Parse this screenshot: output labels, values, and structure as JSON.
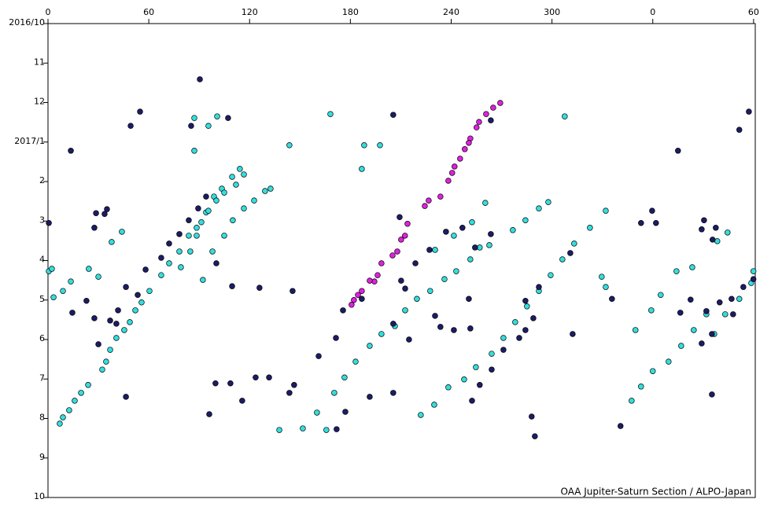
{
  "chart_data": {
    "type": "scatter",
    "annotation": "OAA Jupiter-Saturn Section / ALPO-Japan",
    "xlim": [
      0,
      421
    ],
    "xticks": [
      0,
      60,
      120,
      180,
      240,
      300,
      {
        "value": 360,
        "label": "0"
      },
      {
        "value": 420,
        "label": "60"
      }
    ],
    "ylim": [
      0,
      12
    ],
    "yticks": [
      {
        "value": 0,
        "label": "2016/10"
      },
      {
        "value": 1,
        "label": "11"
      },
      {
        "value": 2,
        "label": "12"
      },
      {
        "value": 3,
        "label": "2017/1"
      },
      {
        "value": 4,
        "label": "2"
      },
      {
        "value": 5,
        "label": "3"
      },
      {
        "value": 6,
        "label": "4"
      },
      {
        "value": 7,
        "label": "5"
      },
      {
        "value": 8,
        "label": "6"
      },
      {
        "value": 9,
        "label": "7"
      },
      {
        "value": 10,
        "label": "8"
      },
      {
        "value": 11,
        "label": "9"
      },
      {
        "value": 12,
        "label": "10"
      }
    ],
    "y_inverted": true,
    "series": [
      {
        "color": "#33dede",
        "x": [
          7.0,
          8.9,
          12.6,
          15.9,
          19.7,
          23.9,
          32.3,
          34.6,
          37.0,
          40.7,
          45.4,
          48.7,
          52.0,
          55.7,
          60.4,
          67.4,
          72.1,
          78.2,
          83.8,
          88.5,
          94.1,
          98.8,
          103.5,
          109.6,
          114.2,
          79.1,
          84.7,
          88.5,
          91.3,
          95.5,
          100.2,
          104.9,
          111.9,
          116.6,
          92.2,
          97.9,
          104.9,
          110.0,
          116.6,
          122.7,
          129.2,
          132.5,
          0.5,
          2.3,
          8.9,
          13.6,
          24.3,
          30.0,
          37.9,
          44.0,
          3.3,
          87.1,
          95.5,
          100.7,
          87.1,
          143.7,
          168.1,
          188.2,
          197.6,
          186.8,
          307.6,
          170.4,
          176.5,
          183.1,
          191.5,
          198.5,
          206.5,
          212.6,
          219.6,
          227.5,
          236.0,
          243.0,
          251.4,
          257.0,
          221.9,
          229.9,
          238.3,
          247.7,
          254.7,
          264.1,
          271.1,
          278.1,
          285.1,
          292.2,
          299.2,
          306.2,
          313.2,
          322.6,
          332.0,
          230.4,
          241.6,
          252.4,
          260.3,
          276.7,
          284.2,
          292.2,
          297.8,
          262.7,
          165.7,
          160.1,
          151.7,
          137.7,
          347.4,
          353.0,
          360.0,
          369.4,
          376.9,
          384.4,
          391.9,
          396.6,
          403.1,
          411.5,
          418.6,
          349.7,
          359.1,
          364.7,
          374.1,
          383.5,
          329.6,
          332.0,
          398.4,
          404.5,
          419.9
        ],
        "values": [
          10.13,
          9.97,
          9.79,
          9.55,
          9.35,
          9.15,
          8.76,
          8.56,
          8.26,
          7.96,
          7.76,
          7.56,
          7.26,
          7.06,
          6.77,
          6.37,
          6.07,
          5.77,
          5.37,
          5.17,
          4.78,
          4.38,
          4.18,
          3.88,
          3.68,
          6.17,
          5.77,
          5.37,
          5.03,
          4.74,
          4.48,
          4.28,
          4.08,
          3.82,
          6.49,
          5.77,
          5.37,
          4.98,
          4.68,
          4.48,
          4.24,
          4.18,
          6.27,
          6.21,
          6.77,
          6.53,
          6.21,
          6.41,
          5.53,
          5.27,
          6.93,
          2.39,
          2.59,
          2.35,
          3.22,
          3.08,
          2.29,
          3.08,
          3.08,
          3.68,
          2.35,
          9.35,
          8.96,
          8.56,
          8.16,
          7.86,
          7.66,
          7.26,
          6.97,
          6.77,
          6.47,
          6.27,
          5.97,
          5.67,
          9.91,
          9.65,
          9.21,
          9.01,
          8.7,
          8.36,
          7.96,
          7.56,
          7.16,
          6.77,
          6.37,
          5.97,
          5.57,
          5.17,
          4.74,
          5.73,
          5.37,
          5.03,
          4.54,
          5.23,
          4.98,
          4.68,
          4.52,
          5.61,
          10.29,
          9.85,
          10.25,
          10.29,
          9.55,
          9.19,
          8.8,
          8.56,
          8.16,
          7.76,
          7.36,
          7.86,
          7.36,
          6.97,
          6.57,
          7.76,
          7.26,
          6.87,
          6.27,
          6.17,
          6.41,
          6.67,
          5.51,
          5.29,
          6.27
        ]
      },
      {
        "color": "#1c1c66",
        "x": [
          0.5,
          13.6,
          14.5,
          22.9,
          27.6,
          30.0,
          37.0,
          41.7,
          46.4,
          53.4,
          58.1,
          67.4,
          72.1,
          78.2,
          83.8,
          89.4,
          94.1,
          27.6,
          28.6,
          33.7,
          35.1,
          40.7,
          46.4,
          49.2,
          54.8,
          85.2,
          90.4,
          107.2,
          100.2,
          109.6,
          125.9,
          99.7,
          96.0,
          108.6,
          115.6,
          123.6,
          131.6,
          143.7,
          146.5,
          145.6,
          161.1,
          171.4,
          175.6,
          186.8,
          191.5,
          171.8,
          177.0,
          205.5,
          205.5,
          209.3,
          212.6,
          210.2,
          214.9,
          205.5,
          218.7,
          227.1,
          230.4,
          233.6,
          236.9,
          241.6,
          246.7,
          250.5,
          254.2,
          263.6,
          263.6,
          251.4,
          252.4,
          257.0,
          264.1,
          271.1,
          280.5,
          284.2,
          288.9,
          284.2,
          292.2,
          289.8,
          287.9,
          312.3,
          310.9,
          335.7,
          340.8,
          353.0,
          359.6,
          361.9,
          375.0,
          376.4,
          382.5,
          389.1,
          390.5,
          397.5,
          389.1,
          395.2,
          391.9,
          399.8,
          406.9,
          413.9,
          419.9,
          407.8,
          417.2,
          411.5,
          395.2,
          395.6
        ],
        "values": [
          5.05,
          3.22,
          7.32,
          7.02,
          7.46,
          8.12,
          7.52,
          7.26,
          6.67,
          6.87,
          6.23,
          5.93,
          5.57,
          5.33,
          4.98,
          4.68,
          4.38,
          5.17,
          4.8,
          4.82,
          4.7,
          7.6,
          9.45,
          2.59,
          2.23,
          2.59,
          1.41,
          2.39,
          6.07,
          6.65,
          6.69,
          9.11,
          9.89,
          9.11,
          9.55,
          8.96,
          8.96,
          9.35,
          9.15,
          6.77,
          8.42,
          7.96,
          7.26,
          6.97,
          9.45,
          10.27,
          9.83,
          9.35,
          2.31,
          4.9,
          6.71,
          6.51,
          8.0,
          7.6,
          6.07,
          5.73,
          7.4,
          7.68,
          5.27,
          7.76,
          5.17,
          6.97,
          5.67,
          5.33,
          2.45,
          7.72,
          9.55,
          9.15,
          8.76,
          8.26,
          7.96,
          7.76,
          7.46,
          7.02,
          6.67,
          10.45,
          9.95,
          7.86,
          5.81,
          6.97,
          10.19,
          5.05,
          4.74,
          5.05,
          3.22,
          7.32,
          6.99,
          5.21,
          4.98,
          5.17,
          8.1,
          7.86,
          7.28,
          7.06,
          6.97,
          6.67,
          6.47,
          7.36,
          2.23,
          2.69,
          9.39,
          5.47
        ]
      },
      {
        "color": "#e020e0",
        "x": [
          269.2,
          265.0,
          260.8,
          256.6,
          255.1,
          251.4,
          250.5,
          248.1,
          245.3,
          242.0,
          240.6,
          238.3,
          233.6,
          226.6,
          224.3,
          214.0,
          212.5,
          210.2,
          207.9,
          205.1,
          198.5,
          196.2,
          194.3,
          191.5,
          186.8,
          184.5,
          182.1,
          180.7
        ],
        "values": [
          2.01,
          2.13,
          2.29,
          2.49,
          2.63,
          2.91,
          3.02,
          3.18,
          3.42,
          3.62,
          3.78,
          3.98,
          4.38,
          4.48,
          4.62,
          5.07,
          5.37,
          5.47,
          5.77,
          5.87,
          6.07,
          6.37,
          6.53,
          6.51,
          6.77,
          6.87,
          7.0,
          7.12
        ]
      }
    ]
  }
}
